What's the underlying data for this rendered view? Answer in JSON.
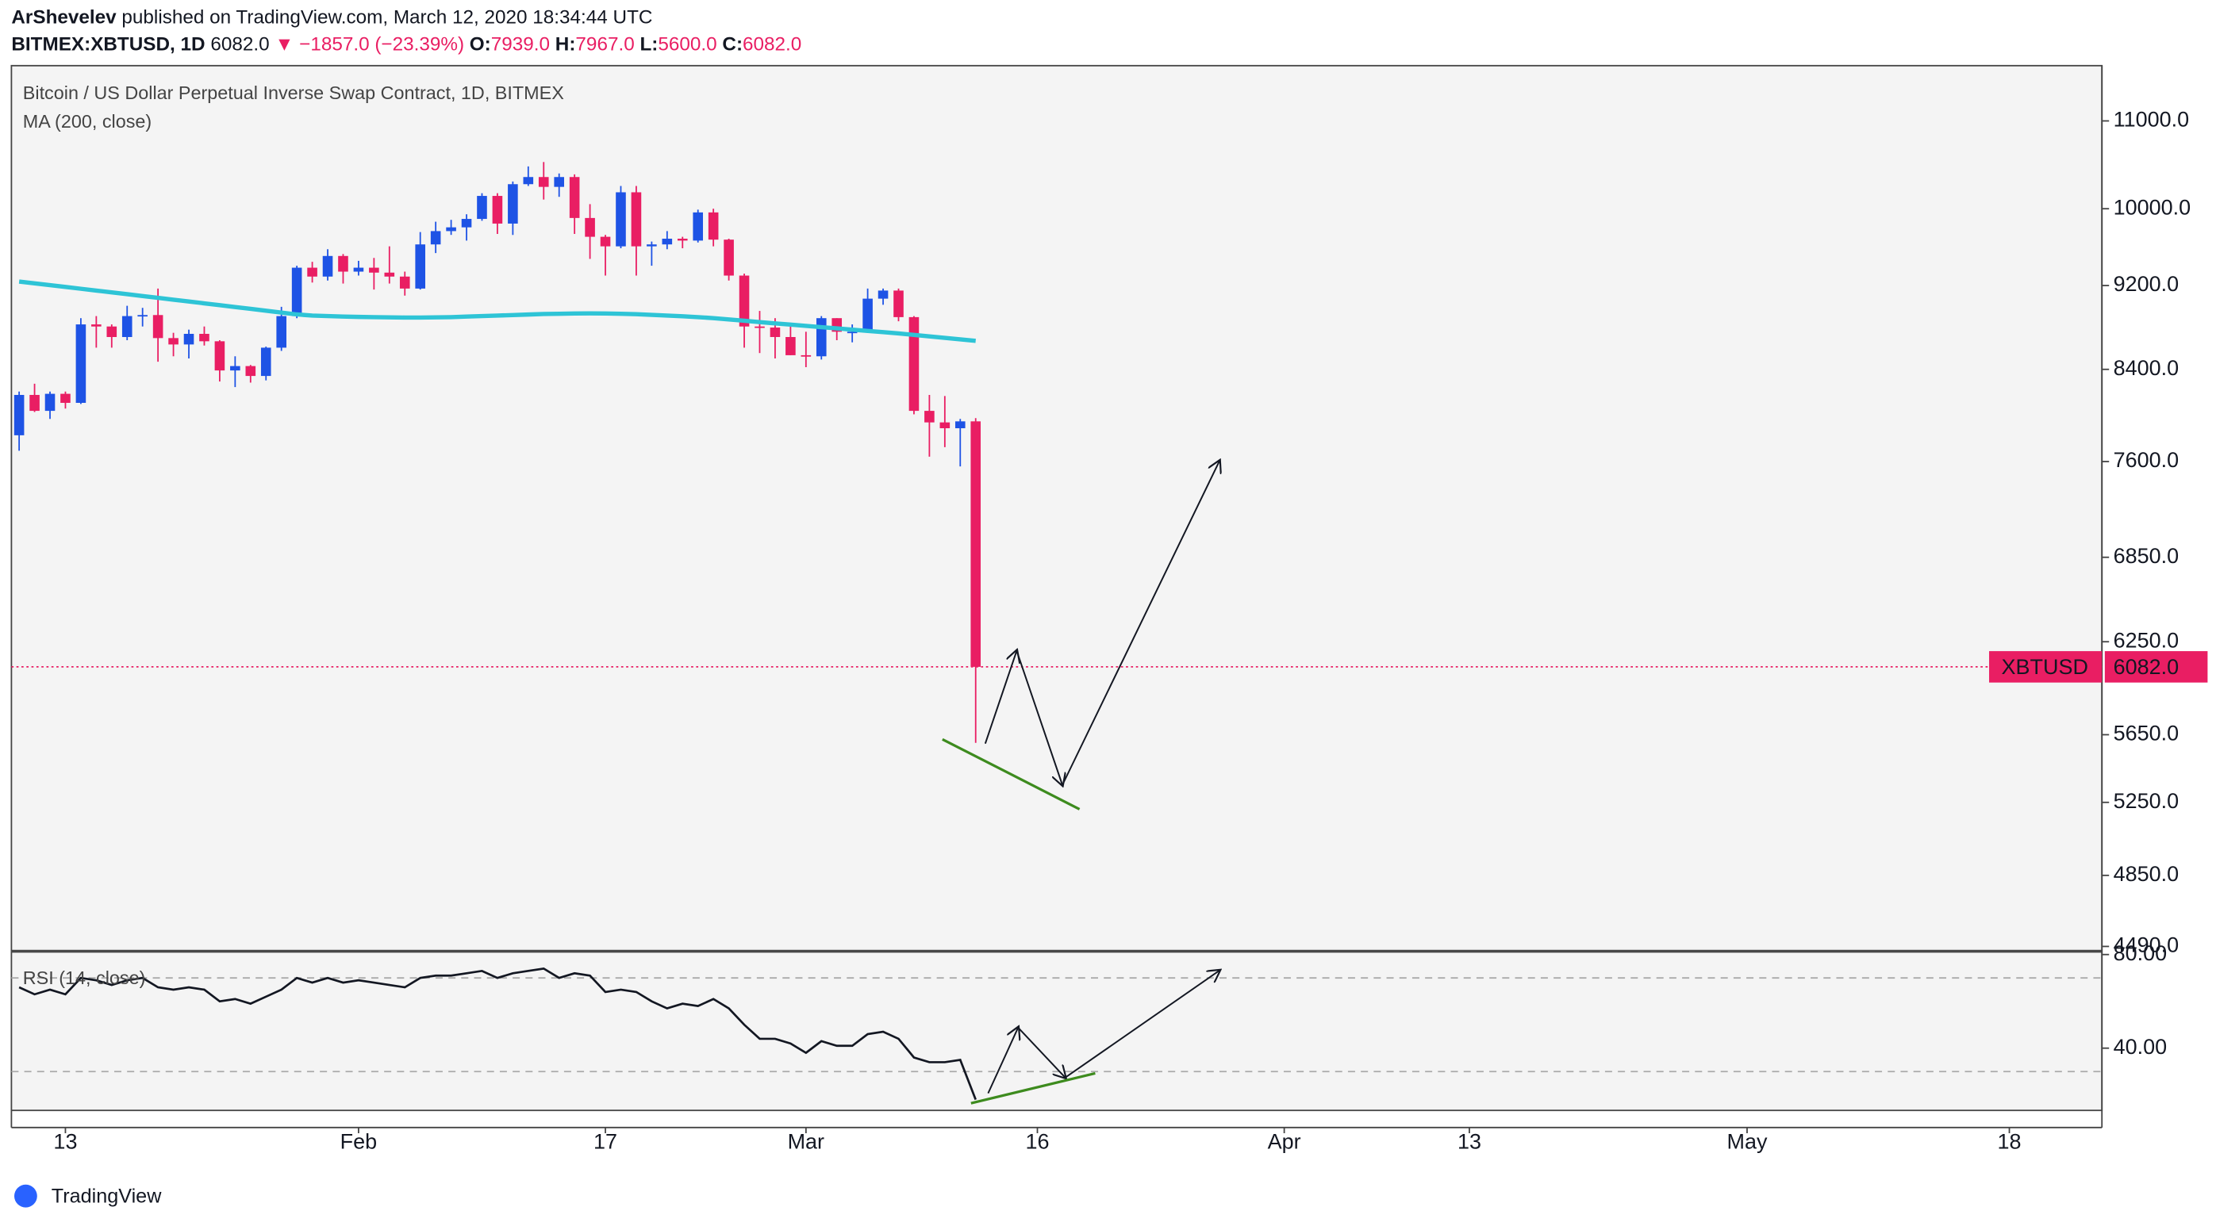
{
  "header": {
    "publisher": "ArShevelev",
    "published": "published on TradingView.com, March 12, 2020 18:34:44 UTC",
    "symbol": "BITMEX:XBTUSD, 1D",
    "last": "6082.0",
    "change": "▼ −1857.0 (−23.39%)",
    "ohlc": [
      {
        "label": "O:",
        "value": "7939.0"
      },
      {
        "label": "H:",
        "value": "7967.0"
      },
      {
        "label": "L:",
        "value": "5600.0"
      },
      {
        "label": "C:",
        "value": "6082.0"
      }
    ]
  },
  "footer": {
    "brand": "TradingView"
  },
  "chart_data": [
    {
      "type": "candlestick",
      "title": "Bitcoin / US Dollar Perpetual Inverse Swap Contract, 1D, BITMEX",
      "log": true,
      "up_color": "#1e53e5",
      "down_color": "#e91e63",
      "xlim": [
        "2020-01-09T12:00:00Z",
        "2020-05-24T00:00:00Z"
      ],
      "ylim": [
        4470,
        11680
      ],
      "yticks": [
        {
          "value": 11000,
          "label": "11000.0"
        },
        {
          "value": 10000,
          "label": "10000.0"
        },
        {
          "value": 9200,
          "label": "9200.0"
        },
        {
          "value": 8400,
          "label": "8400.0"
        },
        {
          "value": 7600,
          "label": "7600.0"
        },
        {
          "value": 6850,
          "label": "6850.0"
        },
        {
          "value": 6250,
          "label": "6250.0"
        },
        {
          "value": 5650,
          "label": "5650.0"
        },
        {
          "value": 5250,
          "label": "5250.0"
        },
        {
          "value": 4850,
          "label": "4850.0"
        },
        {
          "value": 4490,
          "label": "4490.0"
        }
      ],
      "x": [
        "2020-01-10",
        "2020-01-11",
        "2020-01-12",
        "2020-01-13",
        "2020-01-14",
        "2020-01-15",
        "2020-01-16",
        "2020-01-17",
        "2020-01-18",
        "2020-01-19",
        "2020-01-20",
        "2020-01-21",
        "2020-01-22",
        "2020-01-23",
        "2020-01-24",
        "2020-01-25",
        "2020-01-26",
        "2020-01-27",
        "2020-01-28",
        "2020-01-29",
        "2020-01-30",
        "2020-01-31",
        "2020-02-01",
        "2020-02-02",
        "2020-02-03",
        "2020-02-04",
        "2020-02-05",
        "2020-02-06",
        "2020-02-07",
        "2020-02-08",
        "2020-02-09",
        "2020-02-10",
        "2020-02-11",
        "2020-02-12",
        "2020-02-13",
        "2020-02-14",
        "2020-02-15",
        "2020-02-16",
        "2020-02-17",
        "2020-02-18",
        "2020-02-19",
        "2020-02-20",
        "2020-02-21",
        "2020-02-22",
        "2020-02-23",
        "2020-02-24",
        "2020-02-25",
        "2020-02-26",
        "2020-02-27",
        "2020-02-28",
        "2020-02-29",
        "2020-03-01",
        "2020-03-02",
        "2020-03-03",
        "2020-03-04",
        "2020-03-05",
        "2020-03-06",
        "2020-03-07",
        "2020-03-08",
        "2020-03-09",
        "2020-03-10",
        "2020-03-11",
        "2020-03-12"
      ],
      "open": [
        7820,
        8170,
        8030,
        8180,
        8100,
        8820,
        8800,
        8700,
        8900,
        8910,
        8690,
        8630,
        8730,
        8660,
        8390,
        8430,
        8340,
        8600,
        8900,
        9380,
        9290,
        9500,
        9340,
        9380,
        9330,
        9290,
        9170,
        9620,
        9760,
        9800,
        9890,
        10140,
        9840,
        10270,
        10350,
        10240,
        10350,
        9900,
        9700,
        9600,
        10180,
        9600,
        9620,
        9680,
        9660,
        9960,
        9670,
        9300,
        8800,
        8790,
        8700,
        8530,
        8520,
        8880,
        8750,
        8750,
        9070,
        9150,
        8890,
        8030,
        7930,
        7880,
        7939
      ],
      "high": [
        8200,
        8270,
        8200,
        8200,
        8880,
        8900,
        8820,
        9000,
        8980,
        9170,
        8740,
        8770,
        8800,
        8670,
        8520,
        8440,
        8610,
        8990,
        9400,
        9440,
        9570,
        9520,
        9450,
        9480,
        9600,
        9340,
        9750,
        9860,
        9880,
        9940,
        10170,
        10170,
        10300,
        10470,
        10520,
        10390,
        10380,
        10050,
        9720,
        10250,
        10250,
        9650,
        9760,
        9700,
        9990,
        10000,
        9680,
        9320,
        8950,
        8880,
        8800,
        8750,
        8900,
        8880,
        8820,
        9170,
        9170,
        9170,
        8900,
        8170,
        8160,
        7960,
        7967
      ],
      "low": [
        7690,
        8020,
        7960,
        8050,
        8090,
        8600,
        8600,
        8670,
        8800,
        8470,
        8520,
        8500,
        8620,
        8290,
        8240,
        8280,
        8300,
        8570,
        8880,
        9230,
        9250,
        9220,
        9300,
        9160,
        9220,
        9100,
        9160,
        9530,
        9720,
        9660,
        9870,
        9730,
        9720,
        10250,
        10100,
        10130,
        9730,
        9470,
        9300,
        9580,
        9300,
        9400,
        9570,
        9580,
        9640,
        9600,
        9250,
        8600,
        8550,
        8500,
        8530,
        8420,
        8490,
        8670,
        8650,
        8740,
        9010,
        8850,
        8000,
        7640,
        7720,
        7560,
        5600
      ],
      "close": [
        8170,
        8030,
        8180,
        8100,
        8820,
        8800,
        8700,
        8900,
        8910,
        8690,
        8630,
        8730,
        8660,
        8390,
        8430,
        8340,
        8600,
        8900,
        9380,
        9290,
        9500,
        9340,
        9380,
        9330,
        9290,
        9170,
        9620,
        9760,
        9800,
        9890,
        10140,
        9840,
        10270,
        10350,
        10240,
        10350,
        9900,
        9700,
        9600,
        10180,
        9600,
        9620,
        9680,
        9660,
        9960,
        9670,
        9300,
        8800,
        8790,
        8700,
        8530,
        8520,
        8880,
        8750,
        8750,
        9070,
        9150,
        8890,
        8030,
        7930,
        7880,
        7939,
        6082
      ],
      "ma": {
        "name": "MA (200, close)",
        "color": "#2ec4d6",
        "values": [
          9240,
          9222,
          9204,
          9186,
          9168,
          9150,
          9132,
          9114,
          9096,
          9078,
          9060,
          9042,
          9024,
          9006,
          8988,
          8970,
          8952,
          8934,
          8916,
          8905,
          8900,
          8895,
          8892,
          8890,
          8888,
          8886,
          8886,
          8888,
          8890,
          8895,
          8900,
          8905,
          8910,
          8915,
          8920,
          8922,
          8925,
          8926,
          8925,
          8922,
          8918,
          8912,
          8905,
          8898,
          8890,
          8880,
          8868,
          8855,
          8842,
          8830,
          8818,
          8806,
          8794,
          8782,
          8770,
          8758,
          8746,
          8734,
          8720,
          8706,
          8692,
          8678,
          8664
        ]
      },
      "last_price": {
        "value": 6082,
        "label": "6082.0",
        "symbol": "XBTUSD",
        "color": "#e91e63"
      }
    },
    {
      "type": "line",
      "title": "RSI (14, close)",
      "color": "#131722",
      "xlim": [
        "2020-01-09T12:00:00Z",
        "2020-05-24T00:00:00Z"
      ],
      "ylim": [
        13.4,
        81.1
      ],
      "yticks": [
        {
          "value": 80,
          "label": "80.00"
        },
        {
          "value": 40,
          "label": "40.00"
        }
      ],
      "bands": [
        30,
        70
      ],
      "x": [
        "2020-01-10",
        "2020-01-11",
        "2020-01-12",
        "2020-01-13",
        "2020-01-14",
        "2020-01-15",
        "2020-01-16",
        "2020-01-17",
        "2020-01-18",
        "2020-01-19",
        "2020-01-20",
        "2020-01-21",
        "2020-01-22",
        "2020-01-23",
        "2020-01-24",
        "2020-01-25",
        "2020-01-26",
        "2020-01-27",
        "2020-01-28",
        "2020-01-29",
        "2020-01-30",
        "2020-01-31",
        "2020-02-01",
        "2020-02-02",
        "2020-02-03",
        "2020-02-04",
        "2020-02-05",
        "2020-02-06",
        "2020-02-07",
        "2020-02-08",
        "2020-02-09",
        "2020-02-10",
        "2020-02-11",
        "2020-02-12",
        "2020-02-13",
        "2020-02-14",
        "2020-02-15",
        "2020-02-16",
        "2020-02-17",
        "2020-02-18",
        "2020-02-19",
        "2020-02-20",
        "2020-02-21",
        "2020-02-22",
        "2020-02-23",
        "2020-02-24",
        "2020-02-25",
        "2020-02-26",
        "2020-02-27",
        "2020-02-28",
        "2020-02-29",
        "2020-03-01",
        "2020-03-02",
        "2020-03-03",
        "2020-03-04",
        "2020-03-05",
        "2020-03-06",
        "2020-03-07",
        "2020-03-08",
        "2020-03-09",
        "2020-03-10",
        "2020-03-11",
        "2020-03-12"
      ],
      "values": [
        66,
        63,
        65,
        63,
        70,
        69,
        67,
        69,
        70,
        66,
        65,
        66,
        65,
        60,
        61,
        59,
        62,
        65,
        70,
        68,
        70,
        68,
        69,
        68,
        67,
        66,
        70,
        71,
        71,
        72,
        73,
        70,
        72,
        73,
        74,
        70,
        72,
        71,
        64,
        65,
        64,
        60,
        57,
        59,
        58,
        61,
        57,
        50,
        44,
        44,
        42,
        38,
        43,
        41,
        41,
        46,
        47,
        44,
        36,
        34,
        34,
        35,
        18
      ],
      "xticks": [
        {
          "value": "2020-01-13",
          "label": "13"
        },
        {
          "value": "2020-02-01",
          "label": "Feb"
        },
        {
          "value": "2020-02-17",
          "label": "17"
        },
        {
          "value": "2020-03-01",
          "label": "Mar"
        },
        {
          "value": "2020-03-16",
          "label": "16"
        },
        {
          "value": "2020-04-01",
          "label": "Apr"
        },
        {
          "value": "2020-04-13",
          "label": "13"
        },
        {
          "value": "2020-05-01",
          "label": "May"
        },
        {
          "value": "2020-05-18",
          "label": "18"
        }
      ]
    }
  ]
}
